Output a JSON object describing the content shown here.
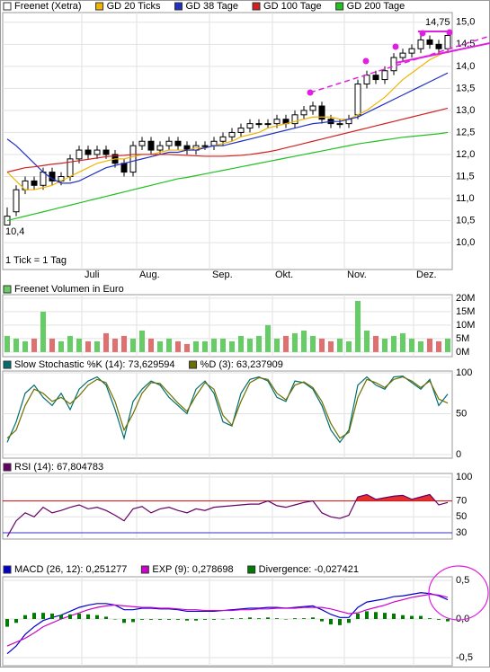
{
  "chart_data": [
    {
      "type": "candlestick",
      "name": "Freenet (Xetra)",
      "color": "#000000",
      "xlim": [
        0,
        50
      ],
      "xticks": [
        {
          "value": 8.8,
          "label": "Juli"
        },
        {
          "value": 14.9,
          "label": "Aug."
        },
        {
          "value": 23,
          "label": "Sep."
        },
        {
          "value": 30,
          "label": "Okt."
        },
        {
          "value": 38,
          "label": "Nov."
        },
        {
          "value": 45.7,
          "label": "Dez."
        }
      ],
      "ylim": [
        9.39,
        15.22
      ],
      "yticks": [
        {
          "value": 10,
          "label": "10,0"
        },
        {
          "value": 10.5,
          "label": "10,5"
        },
        {
          "value": 11,
          "label": "11,0"
        },
        {
          "value": 11.5,
          "label": "11,5"
        },
        {
          "value": 12,
          "label": "12,0"
        },
        {
          "value": 12.5,
          "label": "12,5"
        },
        {
          "value": 13,
          "label": "13,0"
        },
        {
          "value": 13.5,
          "label": "13,5"
        },
        {
          "value": 14,
          "label": "14,0"
        },
        {
          "value": 14.5,
          "label": "14,5"
        },
        {
          "value": 15,
          "label": "15,0"
        }
      ],
      "grid": true,
      "annotations": [
        "10,4",
        "14,75",
        "1 Tick = 1 Tag"
      ],
      "open": [
        10.4,
        10.7,
        11.2,
        11.4,
        11.3,
        11.6,
        11.4,
        11.5,
        11.9,
        12.1,
        12.0,
        12.1,
        12.0,
        11.8,
        11.6,
        12.2,
        12.3,
        12.1,
        12.2,
        12.3,
        12.2,
        12.1,
        12.2,
        12.2,
        12.3,
        12.4,
        12.5,
        12.6,
        12.7,
        12.7,
        12.7,
        12.8,
        12.7,
        12.9,
        13.0,
        13.1,
        12.8,
        12.7,
        12.7,
        12.9,
        13.6,
        13.8,
        13.7,
        13.9,
        14.2,
        14.3,
        14.4,
        14.6,
        14.5,
        14.4
      ],
      "high": [
        10.8,
        11.3,
        11.5,
        11.5,
        11.7,
        11.7,
        11.6,
        12.0,
        12.2,
        12.2,
        12.2,
        12.2,
        12.1,
        11.9,
        12.3,
        12.4,
        12.4,
        12.3,
        12.4,
        12.4,
        12.3,
        12.3,
        12.3,
        12.4,
        12.5,
        12.6,
        12.7,
        12.8,
        12.8,
        12.8,
        12.9,
        12.9,
        13.0,
        13.1,
        13.2,
        13.2,
        12.9,
        12.8,
        12.9,
        13.7,
        13.9,
        13.9,
        14.0,
        14.3,
        14.4,
        14.5,
        14.7,
        14.7,
        14.6,
        14.75
      ],
      "low": [
        10.4,
        10.6,
        11.1,
        11.2,
        11.2,
        11.3,
        11.3,
        11.4,
        11.8,
        11.9,
        11.9,
        11.9,
        11.7,
        11.5,
        11.5,
        12.1,
        12.0,
        12.0,
        12.1,
        12.1,
        12.0,
        12.0,
        12.1,
        12.1,
        12.2,
        12.3,
        12.4,
        12.5,
        12.6,
        12.6,
        12.6,
        12.6,
        12.6,
        12.8,
        12.9,
        12.7,
        12.6,
        12.6,
        12.6,
        12.8,
        13.5,
        13.6,
        13.6,
        13.8,
        14.1,
        14.2,
        14.3,
        14.4,
        14.3,
        14.3
      ],
      "close": [
        10.6,
        11.2,
        11.4,
        11.3,
        11.6,
        11.4,
        11.5,
        11.9,
        12.1,
        12.0,
        12.1,
        12.0,
        11.8,
        11.6,
        12.2,
        12.3,
        12.1,
        12.2,
        12.3,
        12.2,
        12.1,
        12.2,
        12.2,
        12.3,
        12.4,
        12.5,
        12.6,
        12.7,
        12.7,
        12.7,
        12.8,
        12.7,
        12.9,
        13.0,
        13.1,
        12.8,
        12.7,
        12.7,
        12.8,
        13.6,
        13.8,
        13.7,
        13.9,
        14.2,
        14.3,
        14.4,
        14.6,
        14.5,
        14.4,
        14.7
      ],
      "series": [
        {
          "name": "GD 20 Ticks",
          "color": "#f0b400",
          "style": "line",
          "values": [
            11.6,
            11.4,
            11.2,
            11.2,
            11.25,
            11.3,
            11.4,
            11.5,
            11.6,
            11.7,
            11.8,
            11.85,
            11.9,
            11.9,
            11.95,
            12.0,
            12.0,
            12.05,
            12.1,
            12.1,
            12.1,
            12.15,
            12.15,
            12.2,
            12.25,
            12.3,
            12.4,
            12.45,
            12.5,
            12.6,
            12.65,
            12.7,
            12.75,
            12.8,
            12.85,
            12.85,
            12.85,
            12.8,
            12.8,
            12.9,
            13.0,
            13.15,
            13.3,
            13.5,
            13.7,
            13.85,
            14.0,
            14.15,
            14.25,
            14.35
          ]
        },
        {
          "name": "GD 38 Tage",
          "color": "#2030c0",
          "style": "line",
          "values": [
            12.35,
            12.2,
            12.0,
            11.8,
            11.6,
            11.45,
            11.35,
            11.35,
            11.4,
            11.5,
            11.6,
            11.7,
            11.75,
            11.8,
            11.85,
            11.9,
            11.95,
            12.0,
            12.05,
            12.05,
            12.1,
            12.1,
            12.15,
            12.2,
            12.2,
            12.25,
            12.3,
            12.35,
            12.4,
            12.45,
            12.5,
            12.55,
            12.6,
            12.65,
            12.7,
            12.72,
            12.75,
            12.75,
            12.8,
            12.85,
            12.95,
            13.05,
            13.15,
            13.25,
            13.35,
            13.45,
            13.55,
            13.65,
            13.75,
            13.85
          ]
        },
        {
          "name": "GD 100 Tage",
          "color": "#d02020",
          "style": "line",
          "values": [
            11.6,
            11.65,
            11.7,
            11.72,
            11.75,
            11.78,
            11.8,
            11.83,
            11.86,
            11.89,
            11.92,
            11.95,
            11.97,
            11.98,
            12.0,
            12.0,
            12.0,
            12.0,
            12.0,
            11.99,
            11.98,
            11.97,
            11.96,
            11.96,
            11.96,
            11.97,
            11.98,
            12.0,
            12.03,
            12.06,
            12.1,
            12.15,
            12.2,
            12.25,
            12.3,
            12.35,
            12.4,
            12.45,
            12.5,
            12.55,
            12.6,
            12.65,
            12.7,
            12.75,
            12.8,
            12.85,
            12.9,
            12.95,
            13.0,
            13.05
          ]
        },
        {
          "name": "GD 200 Tage",
          "color": "#20c020",
          "style": "line",
          "values": [
            10.5,
            10.55,
            10.6,
            10.65,
            10.7,
            10.75,
            10.8,
            10.85,
            10.9,
            10.95,
            11.0,
            11.05,
            11.1,
            11.15,
            11.2,
            11.25,
            11.3,
            11.35,
            11.4,
            11.45,
            11.48,
            11.52,
            11.56,
            11.6,
            11.64,
            11.68,
            11.72,
            11.76,
            11.8,
            11.84,
            11.88,
            11.92,
            11.96,
            12.0,
            12.04,
            12.08,
            12.12,
            12.16,
            12.2,
            12.24,
            12.27,
            12.3,
            12.33,
            12.36,
            12.39,
            12.41,
            12.43,
            12.45,
            12.47,
            12.5
          ]
        }
      ]
    },
    {
      "type": "bar",
      "ylim": [
        -1.7,
        21.3
      ],
      "yticks": [
        {
          "value": 0,
          "label": "0M"
        },
        {
          "value": 5,
          "label": "5M"
        },
        {
          "value": 10,
          "label": "10M"
        },
        {
          "value": 15,
          "label": "15M"
        },
        {
          "value": 20,
          "label": "20M"
        }
      ],
      "series": [
        {
          "name": "Freenet Volumen in Euro",
          "color": "#66cc66",
          "down_color": "#e07070",
          "style": "bar",
          "values": [
            6,
            5,
            4,
            5,
            15,
            5,
            4,
            6,
            5,
            4,
            4,
            7,
            5,
            6,
            5,
            8,
            5,
            4,
            5,
            4,
            3,
            4,
            4,
            5,
            5,
            4,
            6,
            5,
            6,
            10,
            5,
            6,
            7,
            8,
            6,
            5,
            4,
            5,
            4,
            19,
            8,
            6,
            5,
            6,
            7,
            5,
            4,
            5,
            4,
            5
          ]
        }
      ]
    },
    {
      "type": "line",
      "ylim": [
        -4.4,
        102.2
      ],
      "yticks": [
        0,
        50,
        100
      ],
      "series": [
        {
          "name": "Slow Stochastic %K (14): 73,629594",
          "color": "#006e6e",
          "style": "line",
          "values": [
            15,
            40,
            75,
            85,
            70,
            60,
            75,
            55,
            80,
            90,
            95,
            85,
            55,
            20,
            65,
            80,
            90,
            85,
            70,
            60,
            50,
            80,
            90,
            75,
            40,
            35,
            75,
            92,
            95,
            90,
            70,
            65,
            90,
            88,
            80,
            60,
            30,
            15,
            30,
            85,
            95,
            85,
            80,
            95,
            96,
            88,
            80,
            92,
            60,
            74
          ]
        },
        {
          "name": "%D (3): 63,237909",
          "color": "#6e6e00",
          "style": "line",
          "values": [
            20,
            30,
            60,
            80,
            75,
            65,
            70,
            62,
            72,
            85,
            92,
            88,
            65,
            30,
            50,
            75,
            88,
            87,
            75,
            63,
            53,
            72,
            88,
            80,
            48,
            36,
            65,
            88,
            94,
            92,
            75,
            67,
            85,
            89,
            82,
            65,
            38,
            20,
            27,
            70,
            92,
            88,
            82,
            92,
            95,
            90,
            82,
            90,
            68,
            63
          ]
        }
      ]
    },
    {
      "type": "line",
      "ylim": [
        22.1,
        104.5
      ],
      "yticks": [
        30,
        50,
        70,
        100
      ],
      "tick_colors": [
        "#3333cc",
        "#000000",
        "#cc0000",
        "#000000"
      ],
      "series": [
        {
          "name": "RSI (14): 67,804783",
          "color": "#660066",
          "fill_color": "#e03030",
          "fill_above": 70,
          "style": "line",
          "values": [
            25,
            45,
            55,
            50,
            62,
            55,
            58,
            62,
            65,
            60,
            62,
            58,
            52,
            45,
            60,
            63,
            55,
            60,
            62,
            58,
            55,
            60,
            58,
            62,
            63,
            64,
            65,
            66,
            66,
            70,
            64,
            62,
            65,
            68,
            70,
            55,
            50,
            48,
            52,
            75,
            78,
            72,
            74,
            76,
            77,
            72,
            75,
            78,
            65,
            68
          ]
        }
      ]
    },
    {
      "type": "line",
      "ylim": [
        -0.605,
        0.547
      ],
      "yticks": [
        {
          "value": -0.5,
          "label": "-0,5"
        },
        {
          "value": 0,
          "label": "0,0"
        },
        {
          "value": 0.5,
          "label": "0,5"
        }
      ],
      "series": [
        {
          "name": "MACD (26, 12): 0,251277",
          "color": "#0000cc",
          "style": "line",
          "values": [
            -0.45,
            -0.35,
            -0.2,
            -0.1,
            -0.02,
            0.02,
            0.05,
            0.1,
            0.15,
            0.18,
            0.2,
            0.2,
            0.18,
            0.12,
            0.12,
            0.14,
            0.14,
            0.13,
            0.13,
            0.12,
            0.1,
            0.1,
            0.1,
            0.1,
            0.11,
            0.12,
            0.13,
            0.14,
            0.14,
            0.15,
            0.15,
            0.14,
            0.15,
            0.16,
            0.17,
            0.12,
            0.06,
            0.02,
            0.02,
            0.15,
            0.22,
            0.24,
            0.26,
            0.29,
            0.3,
            0.32,
            0.34,
            0.33,
            0.3,
            0.25
          ]
        },
        {
          "name": "EXP (9): 0,278698",
          "color": "#cc00cc",
          "style": "line",
          "values": [
            -0.35,
            -0.3,
            -0.25,
            -0.18,
            -0.1,
            -0.05,
            0.0,
            0.04,
            0.08,
            0.12,
            0.15,
            0.17,
            0.18,
            0.17,
            0.16,
            0.15,
            0.15,
            0.14,
            0.14,
            0.13,
            0.12,
            0.12,
            0.11,
            0.11,
            0.11,
            0.11,
            0.12,
            0.12,
            0.13,
            0.13,
            0.14,
            0.14,
            0.14,
            0.15,
            0.15,
            0.15,
            0.13,
            0.1,
            0.07,
            0.08,
            0.12,
            0.15,
            0.18,
            0.22,
            0.25,
            0.28,
            0.3,
            0.32,
            0.31,
            0.28
          ]
        },
        {
          "name": "Divergence: -0,027421",
          "color": "#007a00",
          "style": "bar",
          "values": [
            -0.1,
            -0.05,
            0.05,
            0.08,
            0.08,
            0.07,
            0.05,
            0.06,
            0.07,
            0.06,
            0.05,
            0.03,
            0.0,
            -0.05,
            -0.04,
            -0.01,
            -0.01,
            -0.01,
            -0.01,
            -0.01,
            -0.02,
            -0.02,
            -0.01,
            -0.01,
            0.0,
            0.01,
            0.01,
            0.02,
            0.01,
            0.02,
            0.01,
            0.0,
            0.01,
            0.01,
            0.02,
            -0.03,
            -0.07,
            -0.08,
            -0.05,
            0.07,
            0.1,
            0.09,
            0.08,
            0.07,
            0.05,
            0.04,
            0.04,
            0.01,
            -0.01,
            -0.03
          ]
        }
      ]
    }
  ]
}
